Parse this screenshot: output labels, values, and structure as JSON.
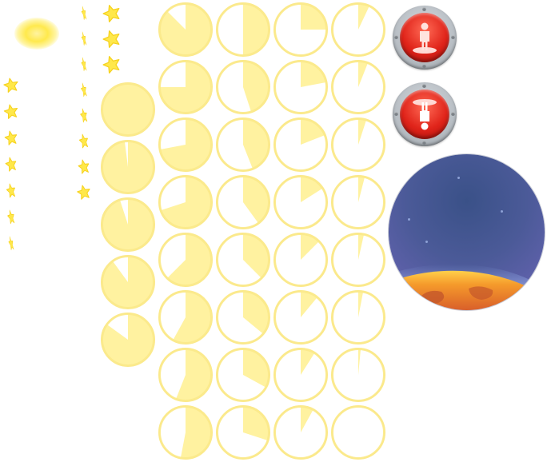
{
  "colors": {
    "timer_fill": "#fff2a0",
    "timer_edge": "#fbe98a",
    "star": "#ffe84a",
    "button_red": "#e0241a",
    "button_rim": "#b8bec4",
    "planet_sky": "#4b5a98",
    "planet_surface": "#f5a02a"
  },
  "icons": {
    "sun_glow": "glow-icon",
    "stand_button": "standing-figure-icon",
    "flip_button": "upside-down-figure-icon",
    "planet": "planet-horizon-icon"
  },
  "timers": {
    "column_5": [
      1.0,
      0.98,
      0.95,
      0.9,
      0.85
    ],
    "column_1": [
      0.875,
      0.75,
      0.72,
      0.7,
      0.625,
      0.58,
      0.56,
      0.53
    ],
    "column_2": [
      0.5,
      0.45,
      0.44,
      0.4,
      0.375,
      0.36,
      0.33,
      0.3
    ],
    "column_3": [
      0.25,
      0.22,
      0.19,
      0.16,
      0.125,
      0.11,
      0.09,
      0.08
    ],
    "column_4": [
      0.07,
      0.06,
      0.05,
      0.04,
      0.035,
      0.03,
      0.015,
      0.0
    ]
  },
  "star_sprites": {
    "column_a_count": 7,
    "column_b_count": 8,
    "column_c_count": 3
  }
}
